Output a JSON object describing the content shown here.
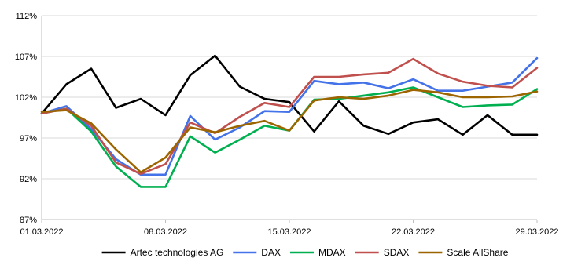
{
  "chart_data": {
    "type": "line",
    "title": "",
    "xlabel": "",
    "ylabel": "",
    "x": [
      "01.03.2022",
      "02.03.2022",
      "03.03.2022",
      "04.03.2022",
      "07.03.2022",
      "08.03.2022",
      "09.03.2022",
      "10.03.2022",
      "11.03.2022",
      "14.03.2022",
      "15.03.2022",
      "16.03.2022",
      "17.03.2022",
      "18.03.2022",
      "21.03.2022",
      "22.03.2022",
      "23.03.2022",
      "24.03.2022",
      "25.03.2022",
      "28.03.2022",
      "29.03.2022"
    ],
    "x_tick_labels": [
      "01.03.2022",
      "08.03.2022",
      "15.03.2022",
      "22.03.2022",
      "29.03.2022"
    ],
    "y_tick_values": [
      87,
      92,
      97,
      102,
      107,
      112
    ],
    "y_tick_labels": [
      "87%",
      "92%",
      "97%",
      "102%",
      "107%",
      "112%"
    ],
    "ylim": [
      87,
      112
    ],
    "y_unit": "%",
    "grid": "horizontal",
    "legend_position": "bottom",
    "series": [
      {
        "name": "Artec technologies AG",
        "color": "#000000",
        "values": [
          100.0,
          103.6,
          105.5,
          100.7,
          101.8,
          99.8,
          104.7,
          107.1,
          103.3,
          101.8,
          101.4,
          97.8,
          101.5,
          98.5,
          97.5,
          98.9,
          99.3,
          97.4,
          99.8,
          97.4,
          97.4
        ]
      },
      {
        "name": "DAX",
        "color": "#4472E8",
        "values": [
          100.0,
          100.9,
          98.1,
          94.4,
          92.5,
          92.5,
          99.7,
          96.8,
          98.3,
          100.3,
          100.2,
          104.0,
          103.6,
          103.8,
          103.1,
          104.2,
          102.8,
          102.8,
          103.3,
          103.8,
          106.8
        ]
      },
      {
        "name": "MDAX",
        "color": "#00B050",
        "values": [
          100.0,
          100.6,
          97.8,
          93.5,
          91.0,
          91.0,
          97.2,
          95.2,
          96.8,
          98.5,
          97.9,
          101.7,
          101.8,
          102.2,
          102.6,
          103.2,
          102.0,
          100.8,
          101.0,
          101.1,
          103.0
        ]
      },
      {
        "name": "SDAX",
        "color": "#C0504D",
        "values": [
          100.0,
          100.6,
          98.5,
          94.0,
          92.6,
          93.8,
          98.9,
          97.6,
          99.6,
          101.3,
          100.8,
          104.5,
          104.5,
          104.8,
          105.0,
          106.7,
          104.9,
          103.9,
          103.4,
          103.2,
          105.6
        ]
      },
      {
        "name": "Scale AllShare",
        "color": "#9C6500",
        "values": [
          100.2,
          100.4,
          98.8,
          95.6,
          92.8,
          94.6,
          98.3,
          97.7,
          98.5,
          99.1,
          97.9,
          101.6,
          102.0,
          101.8,
          102.2,
          102.9,
          102.6,
          102.0,
          102.0,
          102.1,
          102.7
        ]
      }
    ]
  }
}
